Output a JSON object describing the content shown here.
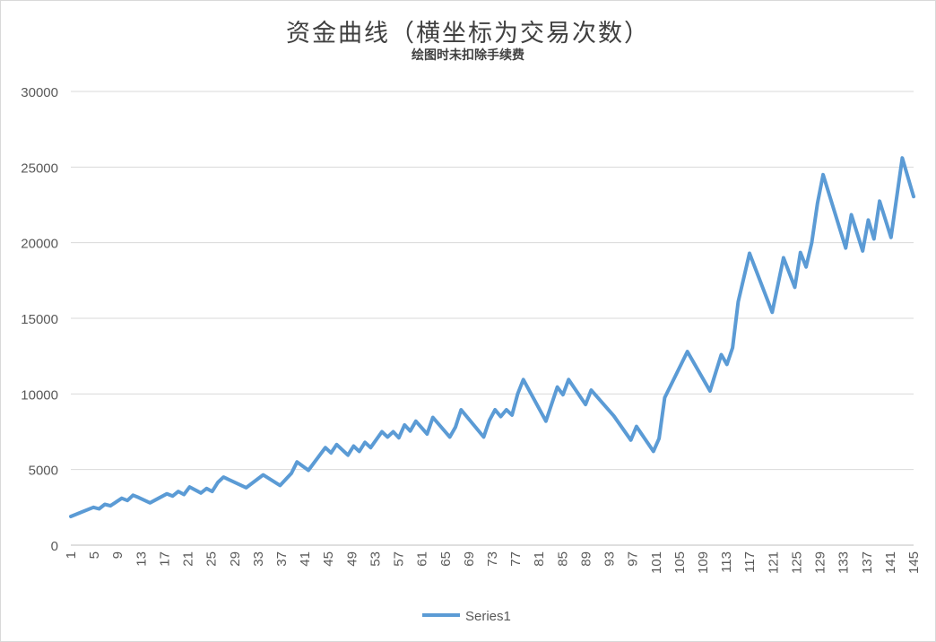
{
  "chart_data": {
    "type": "line",
    "title": "资金曲线（横坐标为交易次数）",
    "subtitle": "绘图时未扣除手续费",
    "xlabel": "",
    "ylabel": "",
    "ylim": [
      0,
      30000
    ],
    "yticks": [
      0,
      5000,
      10000,
      15000,
      20000,
      25000,
      30000
    ],
    "xlim": [
      1,
      145
    ],
    "xtick_step": 4,
    "grid": true,
    "legend_position": "bottom",
    "series": [
      {
        "name": "Series1",
        "color": "#5b9bd5",
        "points": [
          [
            1,
            1900
          ],
          [
            3,
            2200
          ],
          [
            5,
            2500
          ],
          [
            6,
            2400
          ],
          [
            7,
            2700
          ],
          [
            8,
            2600
          ],
          [
            10,
            3100
          ],
          [
            11,
            2950
          ],
          [
            12,
            3300
          ],
          [
            13,
            3150
          ],
          [
            15,
            2800
          ],
          [
            18,
            3400
          ],
          [
            19,
            3250
          ],
          [
            20,
            3550
          ],
          [
            21,
            3350
          ],
          [
            22,
            3850
          ],
          [
            24,
            3450
          ],
          [
            25,
            3750
          ],
          [
            26,
            3550
          ],
          [
            27,
            4150
          ],
          [
            28,
            4500
          ],
          [
            32,
            3800
          ],
          [
            35,
            4650
          ],
          [
            38,
            3950
          ],
          [
            40,
            4750
          ],
          [
            41,
            5500
          ],
          [
            43,
            4950
          ],
          [
            46,
            6450
          ],
          [
            47,
            6100
          ],
          [
            48,
            6650
          ],
          [
            50,
            5950
          ],
          [
            51,
            6550
          ],
          [
            52,
            6200
          ],
          [
            53,
            6800
          ],
          [
            54,
            6450
          ],
          [
            56,
            7500
          ],
          [
            57,
            7150
          ],
          [
            58,
            7500
          ],
          [
            59,
            7100
          ],
          [
            60,
            7950
          ],
          [
            61,
            7550
          ],
          [
            62,
            8200
          ],
          [
            64,
            7350
          ],
          [
            65,
            8450
          ],
          [
            68,
            7150
          ],
          [
            69,
            7800
          ],
          [
            70,
            8950
          ],
          [
            74,
            7150
          ],
          [
            75,
            8250
          ],
          [
            76,
            8950
          ],
          [
            77,
            8500
          ],
          [
            78,
            8950
          ],
          [
            79,
            8600
          ],
          [
            80,
            10000
          ],
          [
            81,
            10950
          ],
          [
            85,
            8200
          ],
          [
            87,
            10450
          ],
          [
            88,
            9950
          ],
          [
            89,
            10950
          ],
          [
            92,
            9300
          ],
          [
            93,
            10250
          ],
          [
            97,
            8550
          ],
          [
            100,
            6950
          ],
          [
            101,
            7850
          ],
          [
            104,
            6200
          ],
          [
            105,
            7050
          ],
          [
            106,
            9750
          ],
          [
            110,
            12800
          ],
          [
            114,
            10200
          ],
          [
            116,
            12600
          ],
          [
            117,
            11950
          ],
          [
            118,
            13050
          ],
          [
            119,
            16100
          ],
          [
            121,
            19300
          ],
          [
            125,
            15400
          ],
          [
            127,
            19000
          ],
          [
            129,
            17050
          ],
          [
            130,
            19350
          ],
          [
            131,
            18400
          ],
          [
            132,
            20000
          ],
          [
            133,
            22600
          ],
          [
            134,
            24500
          ],
          [
            138,
            19650
          ],
          [
            139,
            21850
          ],
          [
            141,
            19450
          ],
          [
            142,
            21500
          ],
          [
            143,
            20250
          ],
          [
            144,
            22750
          ],
          [
            146,
            20350
          ],
          [
            148,
            25600
          ],
          [
            150,
            23050
          ]
        ]
      }
    ]
  }
}
